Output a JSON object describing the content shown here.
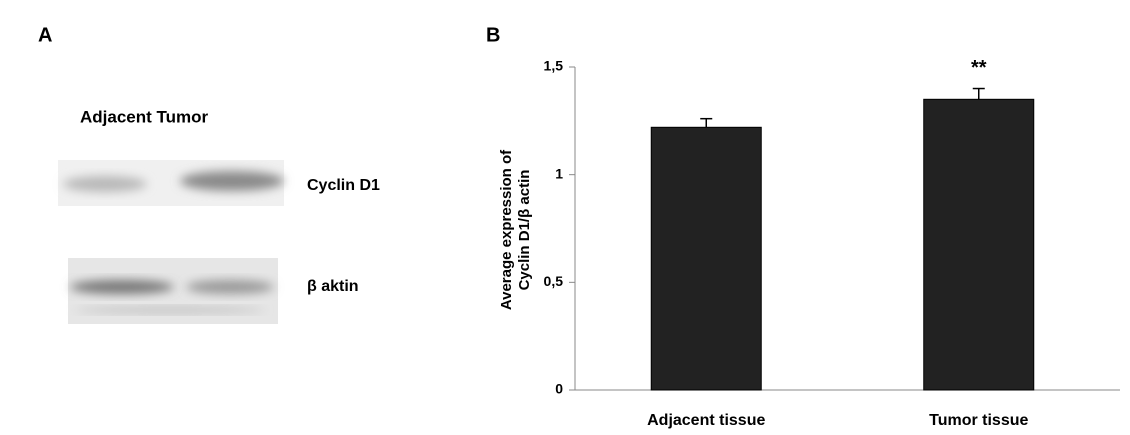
{
  "panel_a": {
    "label": "A",
    "header": "Adjacent Tumor",
    "bands": [
      "Cyclin D1",
      "β aktin"
    ]
  },
  "chart_data": {
    "type": "bar",
    "panel_label": "B",
    "ylabel": [
      "Average expression of",
      "Cyclin D1/β actin"
    ],
    "categories": [
      "Adjacent tissue",
      "Tumor tissue"
    ],
    "values": [
      1.22,
      1.35
    ],
    "errors": [
      0.04,
      0.05
    ],
    "significance": [
      null,
      "**"
    ],
    "color": "#222222",
    "ylim": [
      0,
      1.5
    ],
    "yticks": [
      0,
      {
        "value": 0.5,
        "label": "0,5"
      },
      1,
      {
        "value": 1.5,
        "label": "1,5"
      }
    ]
  }
}
